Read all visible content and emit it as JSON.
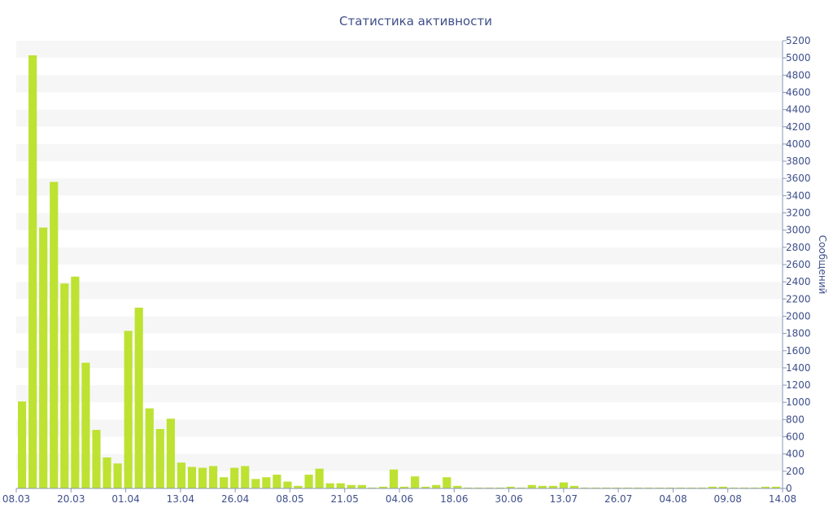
{
  "chart_data": {
    "type": "bar",
    "title": "Статистика активности",
    "ylabel": "Сообщений",
    "xlabel": "",
    "ylim": [
      0,
      5200
    ],
    "y_ticks": [
      0,
      200,
      400,
      600,
      800,
      1000,
      1200,
      1400,
      1600,
      1800,
      2000,
      2200,
      2400,
      2600,
      2800,
      3000,
      3200,
      3400,
      3600,
      3800,
      4000,
      4200,
      4400,
      4600,
      4800,
      5000,
      5200
    ],
    "x_tick_labels": [
      "08.03",
      "20.03",
      "01.04",
      "13.04",
      "26.04",
      "08.05",
      "21.05",
      "04.06",
      "18.06",
      "30.06",
      "13.07",
      "26.07",
      "04.08",
      "09.08",
      "14.08"
    ],
    "bar_color": "#bde232",
    "grid_band_color": "#f6f6f6",
    "axis_text_color": "#3e4f8a",
    "values": [
      1010,
      5030,
      3030,
      3560,
      2380,
      2460,
      1460,
      680,
      360,
      290,
      1830,
      2100,
      930,
      690,
      810,
      300,
      250,
      240,
      260,
      130,
      240,
      260,
      110,
      130,
      160,
      80,
      30,
      160,
      230,
      60,
      60,
      40,
      40,
      10,
      20,
      220,
      20,
      140,
      20,
      40,
      130,
      30,
      10,
      10,
      10,
      10,
      20,
      10,
      40,
      30,
      30,
      70,
      30,
      10,
      10,
      10,
      10,
      10,
      10,
      10,
      10,
      10,
      10,
      10,
      10,
      20,
      20,
      10,
      10,
      10,
      20,
      20
    ]
  }
}
